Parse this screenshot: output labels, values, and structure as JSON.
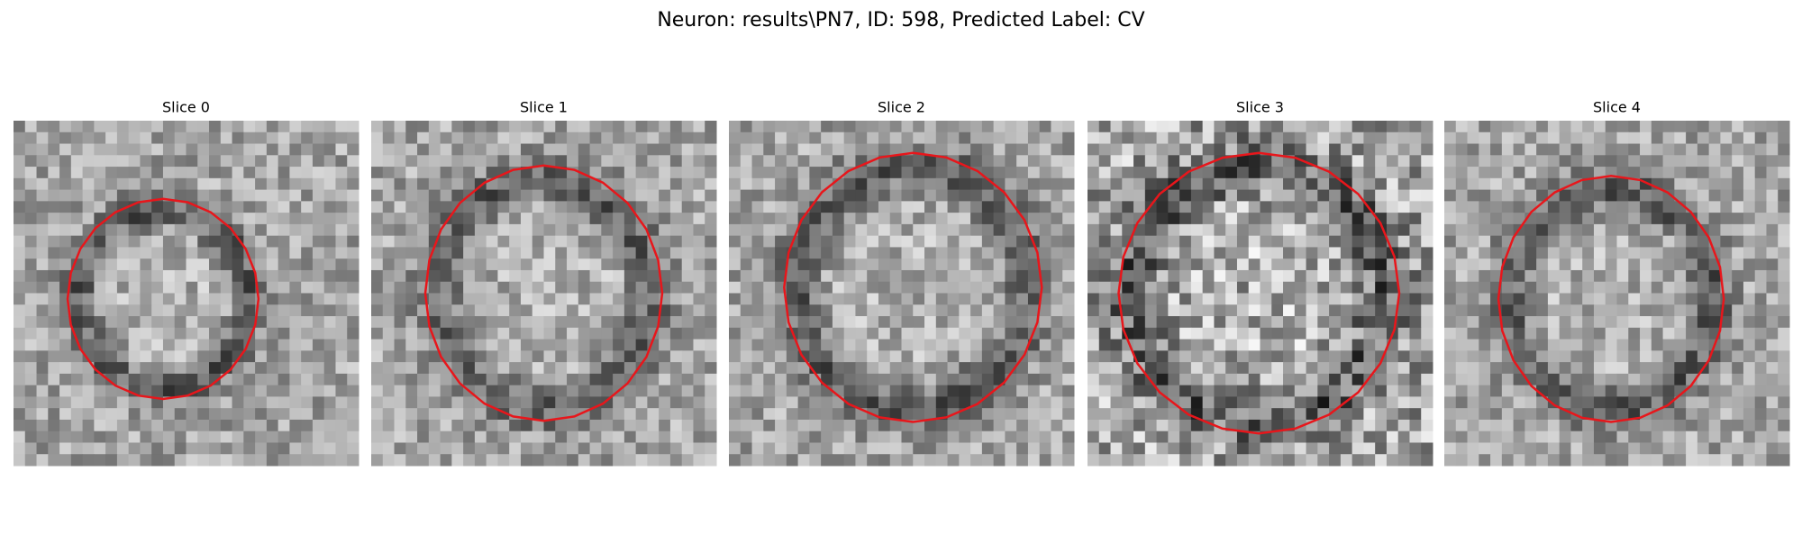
{
  "header": {
    "title": "Neuron: results\\PN7, ID: 598, Predicted Label: CV"
  },
  "panels": [
    {
      "title": "Slice 0"
    },
    {
      "title": "Slice 1"
    },
    {
      "title": "Slice 2"
    },
    {
      "title": "Slice 3"
    },
    {
      "title": "Slice 4"
    }
  ]
}
